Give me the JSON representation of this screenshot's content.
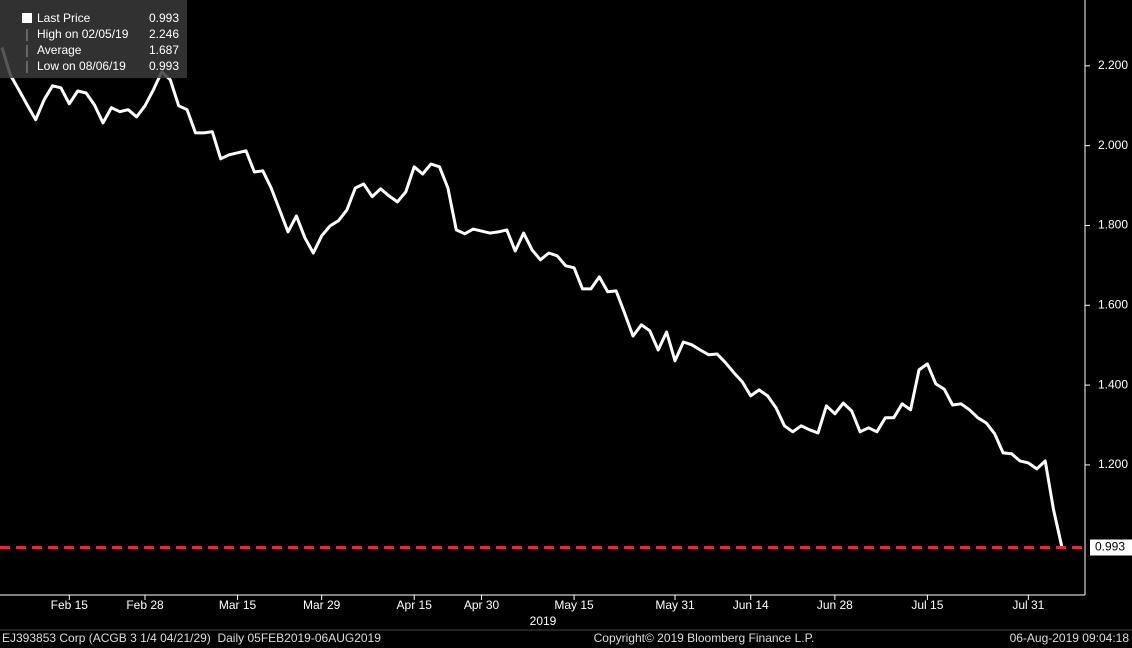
{
  "chart_data": {
    "type": "line",
    "x": [
      "2019-02-05",
      "2019-02-06",
      "2019-02-07",
      "2019-02-08",
      "2019-02-11",
      "2019-02-12",
      "2019-02-13",
      "2019-02-14",
      "2019-02-15",
      "2019-02-18",
      "2019-02-19",
      "2019-02-20",
      "2019-02-21",
      "2019-02-22",
      "2019-02-25",
      "2019-02-26",
      "2019-02-27",
      "2019-02-28",
      "2019-03-01",
      "2019-03-04",
      "2019-03-05",
      "2019-03-06",
      "2019-03-07",
      "2019-03-08",
      "2019-03-11",
      "2019-03-12",
      "2019-03-13",
      "2019-03-14",
      "2019-03-15",
      "2019-03-18",
      "2019-03-19",
      "2019-03-20",
      "2019-03-21",
      "2019-03-22",
      "2019-03-25",
      "2019-03-26",
      "2019-03-27",
      "2019-03-28",
      "2019-03-29",
      "2019-04-01",
      "2019-04-02",
      "2019-04-03",
      "2019-04-04",
      "2019-04-05",
      "2019-04-08",
      "2019-04-09",
      "2019-04-10",
      "2019-04-11",
      "2019-04-12",
      "2019-04-15",
      "2019-04-16",
      "2019-04-17",
      "2019-04-18",
      "2019-04-23",
      "2019-04-24",
      "2019-04-26",
      "2019-04-29",
      "2019-04-30",
      "2019-05-01",
      "2019-05-02",
      "2019-05-03",
      "2019-05-06",
      "2019-05-07",
      "2019-05-08",
      "2019-05-09",
      "2019-05-10",
      "2019-05-13",
      "2019-05-14",
      "2019-05-15",
      "2019-05-16",
      "2019-05-17",
      "2019-05-20",
      "2019-05-21",
      "2019-05-22",
      "2019-05-23",
      "2019-05-24",
      "2019-05-27",
      "2019-05-28",
      "2019-05-29",
      "2019-05-30",
      "2019-05-31",
      "2019-06-03",
      "2019-06-04",
      "2019-06-05",
      "2019-06-06",
      "2019-06-07",
      "2019-06-11",
      "2019-06-12",
      "2019-06-13",
      "2019-06-14",
      "2019-06-17",
      "2019-06-18",
      "2019-06-19",
      "2019-06-20",
      "2019-06-21",
      "2019-06-24",
      "2019-06-25",
      "2019-06-26",
      "2019-06-27",
      "2019-06-28",
      "2019-07-01",
      "2019-07-02",
      "2019-07-03",
      "2019-07-04",
      "2019-07-05",
      "2019-07-08",
      "2019-07-09",
      "2019-07-10",
      "2019-07-11",
      "2019-07-12",
      "2019-07-15",
      "2019-07-16",
      "2019-07-17",
      "2019-07-18",
      "2019-07-19",
      "2019-07-22",
      "2019-07-23",
      "2019-07-24",
      "2019-07-25",
      "2019-07-26",
      "2019-07-29",
      "2019-07-30",
      "2019-07-31",
      "2019-08-01",
      "2019-08-02",
      "2019-08-05",
      "2019-08-06"
    ],
    "series": [
      {
        "name": "Last Price",
        "color": "#ffffff",
        "values": [
          2.246,
          2.177,
          2.14,
          2.102,
          2.065,
          2.115,
          2.15,
          2.145,
          2.105,
          2.137,
          2.132,
          2.102,
          2.057,
          2.095,
          2.085,
          2.09,
          2.072,
          2.1,
          2.14,
          2.185,
          2.165,
          2.1,
          2.09,
          2.032,
          2.032,
          2.035,
          1.967,
          1.977,
          1.982,
          1.987,
          1.934,
          1.937,
          1.894,
          1.839,
          1.784,
          1.824,
          1.769,
          1.731,
          1.774,
          1.799,
          1.812,
          1.839,
          1.894,
          1.904,
          1.872,
          1.892,
          1.874,
          1.859,
          1.884,
          1.947,
          1.929,
          1.954,
          1.947,
          1.894,
          1.789,
          1.779,
          1.791,
          1.786,
          1.781,
          1.784,
          1.789,
          1.736,
          1.781,
          1.739,
          1.714,
          1.731,
          1.724,
          1.699,
          1.694,
          1.641,
          1.641,
          1.671,
          1.634,
          1.636,
          1.581,
          1.523,
          1.551,
          1.536,
          1.488,
          1.533,
          1.461,
          1.508,
          1.501,
          1.488,
          1.476,
          1.478,
          1.456,
          1.431,
          1.408,
          1.373,
          1.388,
          1.373,
          1.343,
          1.298,
          1.283,
          1.298,
          1.288,
          1.28,
          1.348,
          1.328,
          1.355,
          1.335,
          1.283,
          1.293,
          1.283,
          1.318,
          1.318,
          1.353,
          1.338,
          1.438,
          1.453,
          1.403,
          1.39,
          1.35,
          1.353,
          1.338,
          1.318,
          1.305,
          1.278,
          1.23,
          1.228,
          1.21,
          1.205,
          1.19,
          1.21,
          1.087,
          0.993
        ]
      }
    ],
    "ylim": [
      0.874,
      2.365
    ],
    "yticks": [
      {
        "value": 1.2,
        "label": "1.200"
      },
      {
        "value": 1.4,
        "label": "1.400"
      },
      {
        "value": 1.6,
        "label": "1.600"
      },
      {
        "value": 1.8,
        "label": "1.800"
      },
      {
        "value": 2.0,
        "label": "2.000"
      },
      {
        "value": 2.2,
        "label": "2.200"
      }
    ],
    "xticks": [
      {
        "value": "2019-02-15",
        "label": "Feb 15"
      },
      {
        "value": "2019-02-28",
        "label": "Feb 28"
      },
      {
        "value": "2019-03-15",
        "label": "Mar 15"
      },
      {
        "value": "2019-03-29",
        "label": "Mar 29"
      },
      {
        "value": "2019-04-15",
        "label": "Apr 15"
      },
      {
        "value": "2019-04-30",
        "label": "Apr 30"
      },
      {
        "value": "2019-05-15",
        "label": "May 15"
      },
      {
        "value": "2019-05-31",
        "label": "May 31"
      },
      {
        "value": "2019-06-14",
        "label": "Jun 14"
      },
      {
        "value": "2019-06-28",
        "label": "Jun 28"
      },
      {
        "value": "2019-07-15",
        "label": "Jul 15"
      },
      {
        "value": "2019-07-31",
        "label": "Jul 31"
      }
    ],
    "xlabel": "2019",
    "last_line_color": "#e8283c",
    "stats": [
      {
        "label": "High on 02/05/19",
        "value": 2.246
      },
      {
        "label": "Average",
        "value": 1.687
      },
      {
        "label": "Low on 08/06/19",
        "value": 0.993
      }
    ]
  },
  "footer": {
    "left": "EJ393853 Corp (ACGB 3 1/4 04/21/29)  Daily 05FEB2019-06AUG2019",
    "center": "Copyright© 2019 Bloomberg Finance L.P.",
    "right": "06-Aug-2019 09:04:18"
  }
}
